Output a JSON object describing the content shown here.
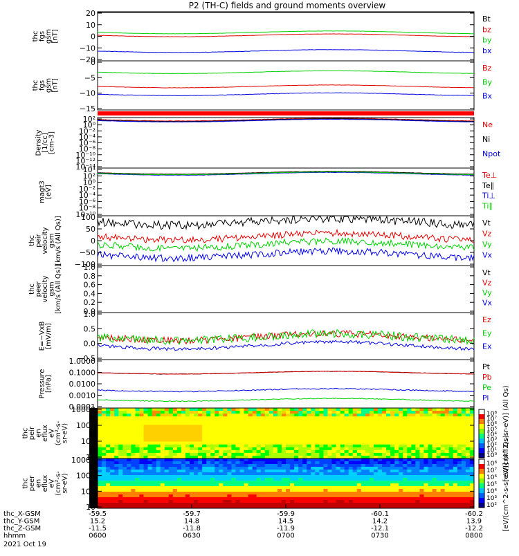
{
  "title": "P2 (TH-C) fields and ground moments overview",
  "date_label": "2021 Oct 19",
  "time_axis": {
    "ticks": [
      "0600",
      "0630",
      "0700",
      "0730",
      "0800"
    ],
    "rows": [
      {
        "label": "thc_X-GSM",
        "values": [
          "-59.5",
          "-59.7",
          "-59.9",
          "-60.1",
          "-60.2"
        ]
      },
      {
        "label": "thc_Y-GSM",
        "values": [
          "15.2",
          "14.8",
          "14.5",
          "14.2",
          "13.9"
        ]
      },
      {
        "label": "thc_Z-GSM",
        "values": [
          "-11.5",
          "-11.8",
          "-11.9",
          "-12.1",
          "-12.2"
        ]
      },
      {
        "label": "hhmm",
        "values": [
          "0600",
          "0630",
          "0700",
          "0730",
          "0800"
        ]
      }
    ]
  },
  "colors": {
    "black": "#000000",
    "red": "#e00000",
    "green": "#00d000",
    "blue": "#0000e0"
  },
  "panels": [
    {
      "ylabel": [
        "thc",
        "fgs",
        "gsm",
        "[nT]"
      ],
      "yticks": [
        "20",
        "10",
        "0",
        "−10",
        "−20"
      ],
      "legend": [
        {
          "label": "Bt",
          "color": "#000000"
        },
        {
          "label": "bz",
          "color": "#e00000"
        },
        {
          "label": "by",
          "color": "#00d000"
        },
        {
          "label": "bx",
          "color": "#0000e0"
        }
      ]
    },
    {
      "ylabel": [
        "thc",
        "fgs",
        "gsm",
        "[nT]"
      ],
      "yticks": [
        "0",
        "−5",
        "−10",
        "−15"
      ],
      "legend": [
        {
          "label": "Bz",
          "color": "#e00000"
        },
        {
          "label": "By",
          "color": "#00d000"
        },
        {
          "label": "Bx",
          "color": "#0000e0"
        }
      ]
    },
    {
      "ylabel": [
        "Density",
        "[1/cc]",
        "[cm-3]"
      ],
      "yticks": [
        "10²",
        "10⁰",
        "10⁻²",
        "10⁻⁴",
        "10⁻⁶",
        "10⁻⁸",
        "10⁻¹⁰",
        "10⁻¹²",
        "10⁻¹⁴"
      ],
      "legend": [
        {
          "label": "Ne",
          "color": "#e00000"
        },
        {
          "label": "Ni",
          "color": "#000000"
        },
        {
          "label": "Npot",
          "color": "#0000e0"
        }
      ]
    },
    {
      "ylabel": [
        "magt3",
        "[eV]"
      ],
      "yticks": [
        "10⁴",
        "10²",
        "10⁰",
        "10⁻²",
        "10⁻⁴",
        "10⁻⁶",
        "10⁻⁸",
        "10⁻¹⁰"
      ],
      "legend": [
        {
          "label": "Te⊥",
          "color": "#e00000"
        },
        {
          "label": "Te∥",
          "color": "#000000"
        },
        {
          "label": "Ti⊥",
          "color": "#0000e0"
        },
        {
          "label": "Ti∥",
          "color": "#00d000"
        }
      ]
    },
    {
      "ylabel": [
        "thc",
        "peir",
        "velocity",
        "gsm",
        "[km/s (All Qs)]"
      ],
      "yticks": [
        "100",
        "50",
        "0",
        "−50",
        "−100"
      ],
      "legend": [
        {
          "label": "Vt",
          "color": "#000000"
        },
        {
          "label": "Vz",
          "color": "#e00000"
        },
        {
          "label": "Vy",
          "color": "#00d000"
        },
        {
          "label": "Vx",
          "color": "#0000e0"
        }
      ]
    },
    {
      "ylabel": [
        "thc",
        "peer",
        "velocity",
        "gsm",
        "[km/s (All Qs)]"
      ],
      "yticks": [
        "1.0",
        "0.8",
        "0.6",
        "0.4",
        "0.2",
        "0.0"
      ],
      "legend": [
        {
          "label": "Vt",
          "color": "#000000"
        },
        {
          "label": "Vz",
          "color": "#e00000"
        },
        {
          "label": "Vy",
          "color": "#00d000"
        },
        {
          "label": "Vx",
          "color": "#0000e0"
        }
      ]
    },
    {
      "ylabel": [
        "E=−VxB",
        "[mV/m]"
      ],
      "yticks": [
        "1.0",
        "0.5",
        "0.0",
        "−0.5"
      ],
      "legend": [
        {
          "label": "Ez",
          "color": "#e00000"
        },
        {
          "label": "Ey",
          "color": "#00d000"
        },
        {
          "label": "Ex",
          "color": "#0000e0"
        }
      ]
    },
    {
      "ylabel": [
        "Pressure",
        "[nPa]"
      ],
      "yticks": [
        "1.0000",
        "0.1000",
        "0.0100",
        "0.0010",
        "0.0001"
      ],
      "legend": [
        {
          "label": "Pt",
          "color": "#000000"
        },
        {
          "label": "Pb",
          "color": "#e00000"
        },
        {
          "label": "Pe",
          "color": "#00d000"
        },
        {
          "label": "Pi",
          "color": "#0000e0"
        }
      ]
    },
    {
      "ylabel": [
        "thc",
        "peir",
        "en",
        "eflux",
        "eV",
        "(cm²-s-",
        "sr-eV)"
      ],
      "yticks": [
        "10000",
        "1000",
        "100",
        "10"
      ],
      "legend": []
    },
    {
      "ylabel": [
        "thc",
        "peer",
        "en",
        "eflux",
        "eV",
        "(cm²-s-",
        "sr-eV)"
      ],
      "yticks": [
        "10000",
        "1000",
        "100",
        "10"
      ],
      "legend": []
    }
  ],
  "colorbar_1": {
    "ticks": [
      "10⁸",
      "10⁷",
      "10⁶",
      "10⁵",
      "10⁴",
      "10³",
      "10²",
      "10¹",
      "10⁰"
    ],
    "label": "[eV/(cm^2-s-sr-eV)] (All Qs)"
  },
  "colorbar_2": {
    "ticks": [
      "10⁸",
      "10⁷",
      "10⁶",
      "10⁵",
      "10⁴",
      "10³",
      "10²"
    ],
    "label": "[eV/(cm^2-s-sr-eV)] (All Qs)"
  },
  "chart_data": {
    "type": "line",
    "title": "P2 (TH-C) fields and ground moments overview",
    "x_ticks": [
      "0600",
      "0630",
      "0700",
      "0730",
      "0800"
    ],
    "panels": [
      {
        "name": "fgs gsm",
        "ylim": [
          -20,
          20
        ],
        "series": [
          {
            "name": "Bt",
            "approx_level": 14
          },
          {
            "name": "bz",
            "approx_level": -1
          },
          {
            "name": "by",
            "approx_level": 2
          },
          {
            "name": "bx",
            "approx_level": -12
          }
        ]
      },
      {
        "name": "fgs gsm",
        "ylim": [
          -18,
          3
        ],
        "series": [
          {
            "name": "Bz",
            "approx_level": -1
          },
          {
            "name": "By",
            "approx_level": 2
          },
          {
            "name": "Bx",
            "approx_level": -8
          }
        ]
      },
      {
        "name": "peir velocity",
        "ylim": [
          -100,
          100
        ],
        "series": [
          {
            "name": "Vt",
            "approx_level": 75
          },
          {
            "name": "Vz",
            "approx_level": 20
          },
          {
            "name": "Vy",
            "approx_level": 0
          },
          {
            "name": "Vx",
            "approx_level": -50
          }
        ]
      },
      {
        "name": "E=-VxB",
        "ylim": [
          -0.6,
          1.0
        ],
        "series": [
          {
            "name": "Ez",
            "approx_level": 0.2
          },
          {
            "name": "Ey",
            "approx_level": 0.2
          },
          {
            "name": "Ex",
            "approx_level": 0.05
          }
        ]
      },
      {
        "name": "Pressure",
        "ylim": [
          0.0001,
          1.0
        ],
        "log": true,
        "series": [
          {
            "name": "Pt",
            "approx_level": 0.1
          },
          {
            "name": "Pb",
            "approx_level": 0.1
          },
          {
            "name": "Pe",
            "approx_level": 0.0005
          },
          {
            "name": "Pi",
            "approx_level": 0.003
          }
        ]
      }
    ]
  }
}
